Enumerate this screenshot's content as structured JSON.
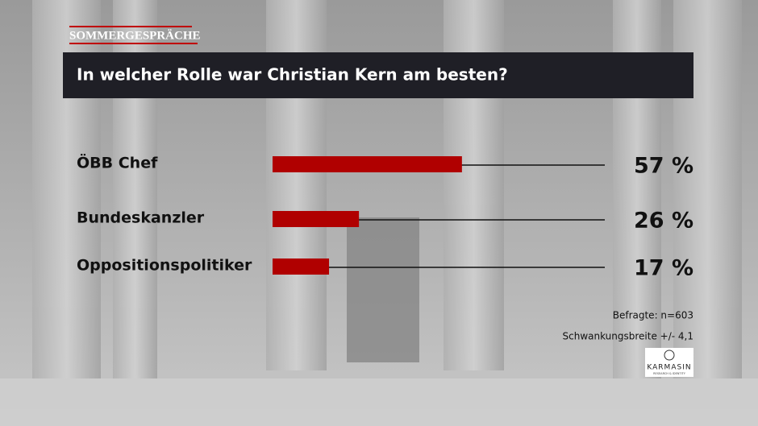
{
  "header": "SOMMERGESPRÄCHE",
  "chart_data": {
    "type": "hbar",
    "title": "In welcher Rolle war Christian Kern am besten?",
    "categories": [
      "ÖBB Chef",
      "Bundeskanzler",
      "Oppositionspolitiker"
    ],
    "values": [
      57,
      26,
      17
    ],
    "value_labels": [
      "57 %",
      "26 %",
      "17 %"
    ],
    "color": "#b00000",
    "xlim": [
      0,
      100
    ]
  },
  "notes": [
    "Befragte: n=603",
    "Schwankungsbreite +/- 4,1"
  ],
  "logo": {
    "name": "KARMASIN",
    "tagline": "RESEARCH & IDENTITY"
  }
}
